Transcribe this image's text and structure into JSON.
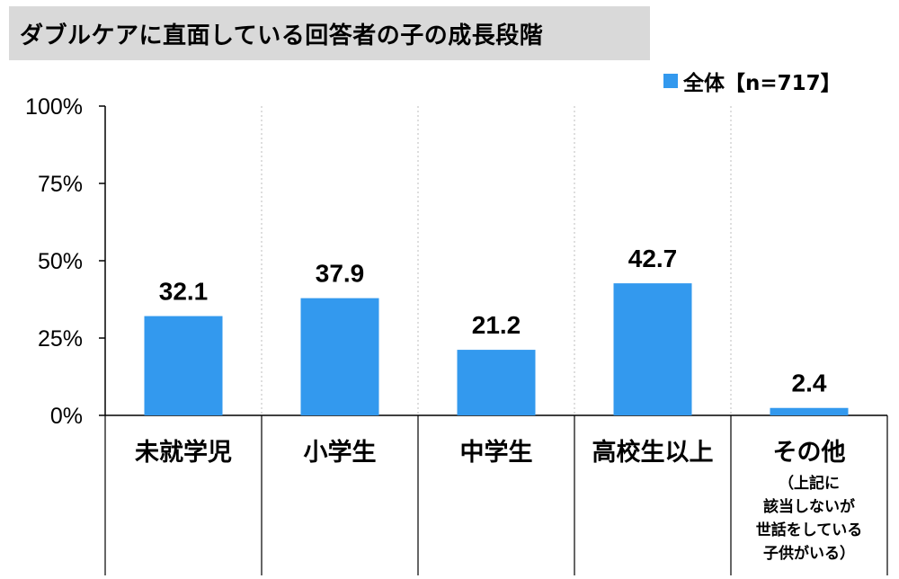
{
  "title": "ダブルケアに直面している回答者の子の成長段階",
  "legend": {
    "label": "全体【n=717】",
    "color": "#3399ee"
  },
  "chart_data": {
    "type": "bar",
    "title": "ダブルケアに直面している回答者の子の成長段階",
    "categories": [
      "未就学児",
      "小学生",
      "中学生",
      "高校生以上",
      "その他"
    ],
    "category_sublabels": [
      [],
      [],
      [],
      [],
      [
        "（上記に",
        "該当しないが",
        "世話をしている",
        "子供がいる）"
      ]
    ],
    "series": [
      {
        "name": "全体【n=717】",
        "values": [
          32.1,
          37.9,
          21.2,
          42.7,
          2.4
        ],
        "color": "#3399ee"
      }
    ],
    "value_labels": [
      "32.1",
      "37.9",
      "21.2",
      "42.7",
      "2.4"
    ],
    "ylim": [
      0,
      100
    ],
    "yticks": [
      0,
      25,
      50,
      75,
      100
    ],
    "ytick_labels": [
      "0%",
      "25%",
      "50%",
      "75%",
      "100%"
    ],
    "xlabel": "",
    "ylabel": "",
    "grid": "vertical dotted separators",
    "legend_position": "top-right"
  }
}
